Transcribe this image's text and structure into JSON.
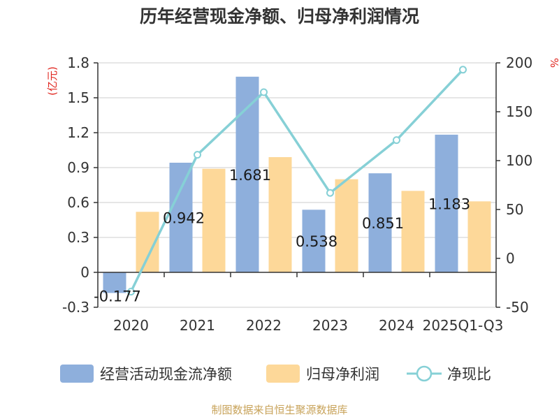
{
  "chart_data": {
    "type": "bar",
    "title": "历年经营现金净额、归母净利润情况",
    "categories": [
      "2020",
      "2021",
      "2022",
      "2023",
      "2024",
      "2025Q1-Q3"
    ],
    "series": [
      {
        "name": "经营活动现金流净额",
        "type": "bar",
        "axis": "left",
        "color": "#8eafdc",
        "values": [
          -0.177,
          0.942,
          1.681,
          0.538,
          0.851,
          1.183
        ],
        "labels": [
          "-0.177",
          "0.942",
          "1.681",
          "0.538",
          "0.851",
          "1.183"
        ]
      },
      {
        "name": "归母净利润",
        "type": "bar",
        "axis": "left",
        "color": "#fdd899",
        "values": [
          0.52,
          0.89,
          0.99,
          0.8,
          0.7,
          0.61
        ]
      },
      {
        "name": "净现比",
        "type": "line",
        "axis": "right",
        "color": "#86d0d6",
        "values": [
          -34,
          106,
          170,
          67,
          121,
          193
        ]
      }
    ],
    "left_axis": {
      "unit": "(亿元)",
      "min": -0.3,
      "max": 1.8,
      "ticks": [
        "1.8",
        "1.5",
        "1.2",
        "0.9",
        "0.6",
        "0.3",
        "0",
        "-0.3"
      ]
    },
    "right_axis": {
      "unit": "%",
      "min": -50,
      "max": 200,
      "ticks": [
        "200",
        "150",
        "100",
        "50",
        "0",
        "-50"
      ]
    },
    "grid": true,
    "legend": "bottom"
  },
  "source_text": "制图数据来自恒生聚源数据库"
}
